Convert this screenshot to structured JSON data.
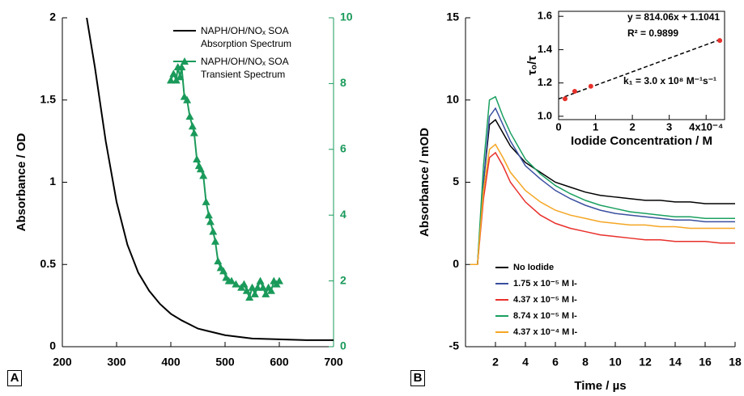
{
  "chart_data": [
    {
      "type": "line",
      "panel_label": "A",
      "ylabel": "Absorbance / OD",
      "xlim": [
        200,
        700
      ],
      "xticks": [
        200,
        300,
        400,
        500,
        600,
        700
      ],
      "ylim": [
        0,
        2
      ],
      "yticks": [
        0,
        0.5,
        1,
        1.5,
        2
      ],
      "y2lim": [
        0,
        10
      ],
      "y2ticks": [
        0,
        2,
        4,
        6,
        8,
        10
      ],
      "y2color": "#1a9a5a",
      "legend": "upper right",
      "series": [
        {
          "name": "NAPH/OH/NOₓ SOA Absorption Spectrum",
          "color": "#000000",
          "marker": "none",
          "x": [
            245,
            260,
            280,
            300,
            320,
            340,
            360,
            380,
            400,
            420,
            450,
            500,
            550,
            600,
            650,
            700
          ],
          "values": [
            2,
            1.7,
            1.25,
            0.88,
            0.62,
            0.45,
            0.34,
            0.26,
            0.2,
            0.16,
            0.11,
            0.07,
            0.05,
            0.045,
            0.04,
            0.04
          ]
        },
        {
          "name": "NAPH/OH/NOₓ SOA Transient Spectrum",
          "color": "#1a9a5a",
          "marker": "triangle",
          "axis": "y2",
          "x": [
            400,
            405,
            410,
            413,
            417,
            420,
            425,
            430,
            435,
            440,
            443,
            448,
            452,
            455,
            460,
            465,
            470,
            473,
            478,
            482,
            487,
            492,
            497,
            502,
            507,
            512,
            520,
            530,
            535,
            540,
            545,
            550,
            555,
            560,
            565,
            570,
            575,
            580,
            585,
            590,
            595,
            600
          ],
          "values": [
            8.1,
            8.3,
            8.1,
            8.5,
            8.2,
            8.5,
            7.6,
            7.5,
            7,
            6.7,
            6.5,
            5.7,
            5.5,
            5.4,
            5.2,
            4.4,
            4,
            3.8,
            3.5,
            3.2,
            2.6,
            2.4,
            2.3,
            2.1,
            2,
            2,
            1.9,
            1.8,
            1.9,
            1.7,
            1.5,
            1.8,
            1.6,
            1.8,
            2,
            1.8,
            1.6,
            1.8,
            1.7,
            2,
            1.9,
            2
          ]
        }
      ]
    },
    {
      "type": "line",
      "panel_label": "B",
      "xlabel": "Time / µs",
      "ylabel": "Absorbance / mOD",
      "xlim": [
        0,
        18
      ],
      "xticks": [
        2,
        4,
        6,
        8,
        10,
        12,
        14,
        16,
        18
      ],
      "ylim": [
        -5,
        15
      ],
      "yticks": [
        -5,
        0,
        5,
        10,
        15
      ],
      "legend": "lower left",
      "series": [
        {
          "name": "No Iodide",
          "color": "#000000",
          "marker": "none",
          "x": [
            0.3,
            0.8,
            1.2,
            1.6,
            2,
            2.5,
            3,
            4,
            5,
            6,
            7,
            8,
            9,
            10,
            11,
            12,
            13,
            14,
            15,
            16,
            17,
            18
          ],
          "values": [
            0,
            0,
            5,
            8.5,
            8.8,
            8,
            7.2,
            6.2,
            5.6,
            5,
            4.7,
            4.4,
            4.2,
            4.1,
            4,
            3.9,
            3.9,
            3.8,
            3.8,
            3.7,
            3.7,
            3.7
          ]
        },
        {
          "name": "1.75 x 10⁻⁵ M I-",
          "color": "#3a4fa0",
          "marker": "none",
          "x": [
            0.3,
            0.8,
            1.2,
            1.6,
            2,
            2.5,
            3,
            4,
            5,
            6,
            7,
            8,
            9,
            10,
            11,
            12,
            13,
            14,
            15,
            16,
            17,
            18
          ],
          "values": [
            0,
            0,
            5,
            9,
            9.5,
            8.5,
            7.5,
            6,
            5.2,
            4.5,
            4,
            3.6,
            3.3,
            3.1,
            3,
            2.9,
            2.8,
            2.7,
            2.7,
            2.6,
            2.6,
            2.6
          ]
        },
        {
          "name": "4.37 x 10⁻⁵ M I-",
          "color": "#e8302a",
          "marker": "none",
          "x": [
            0.3,
            0.8,
            1.2,
            1.6,
            2,
            2.5,
            3,
            4,
            5,
            6,
            7,
            8,
            9,
            10,
            11,
            12,
            13,
            14,
            15,
            16,
            17,
            18
          ],
          "values": [
            0,
            0,
            4,
            6.5,
            6.8,
            6,
            5,
            3.8,
            3,
            2.5,
            2.2,
            2,
            1.8,
            1.7,
            1.6,
            1.5,
            1.5,
            1.4,
            1.4,
            1.4,
            1.3,
            1.3
          ]
        },
        {
          "name": "8.74 x 10⁻⁵ M I-",
          "color": "#1aa060",
          "marker": "none",
          "x": [
            0.3,
            0.8,
            1.2,
            1.6,
            2,
            2.5,
            3,
            4,
            5,
            6,
            7,
            8,
            9,
            10,
            11,
            12,
            13,
            14,
            15,
            16,
            17,
            18
          ],
          "values": [
            0,
            0,
            6,
            10,
            10.2,
            9,
            8,
            6.4,
            5.5,
            4.8,
            4.3,
            3.9,
            3.6,
            3.4,
            3.2,
            3.1,
            3,
            2.9,
            2.9,
            2.8,
            2.8,
            2.8
          ]
        },
        {
          "name": "4.37 x 10⁻⁴ M I-",
          "color": "#f5a623",
          "marker": "none",
          "x": [
            0.3,
            0.8,
            1.2,
            1.6,
            2,
            2.5,
            3,
            4,
            5,
            6,
            7,
            8,
            9,
            10,
            11,
            12,
            13,
            14,
            15,
            16,
            17,
            18
          ],
          "values": [
            0,
            0,
            4.5,
            7,
            7.3,
            6.5,
            5.6,
            4.5,
            3.8,
            3.3,
            3,
            2.8,
            2.6,
            2.5,
            2.4,
            2.4,
            2.3,
            2.3,
            2.2,
            2.2,
            2.2,
            2.2
          ]
        }
      ]
    },
    {
      "type": "scatter",
      "xlabel": "Iodide Concentration / M",
      "ylabel": "τ₀/τ",
      "xlim": [
        0,
        0.00045
      ],
      "xticks": [
        {
          "value": 0,
          "label": "0"
        },
        {
          "value": 0.0001,
          "label": "1"
        },
        {
          "value": 0.0002,
          "label": "2"
        },
        {
          "value": 0.0003,
          "label": "3"
        },
        {
          "value": 0.0004,
          "label": "4x10⁻⁴"
        }
      ],
      "ylim": [
        0.98,
        1.63
      ],
      "yticks": [
        {
          "value": 1,
          "label": "1.0"
        },
        1.2,
        1.4,
        1.6
      ],
      "series": [
        {
          "color": "#e8302a",
          "marker": "circle",
          "x": [
            1.75e-05,
            4.37e-05,
            8.74e-05,
            0.000437
          ],
          "values": [
            1.105,
            1.15,
            1.18,
            1.455
          ]
        }
      ],
      "fit": {
        "slope": 814.06,
        "intercept": 1.1041
      },
      "annotations": [
        "y = 814.06x + 1.1041",
        "R² = 0.9899",
        "k₁ = 3.0 x 10⁸ M⁻¹s⁻¹"
      ]
    }
  ]
}
